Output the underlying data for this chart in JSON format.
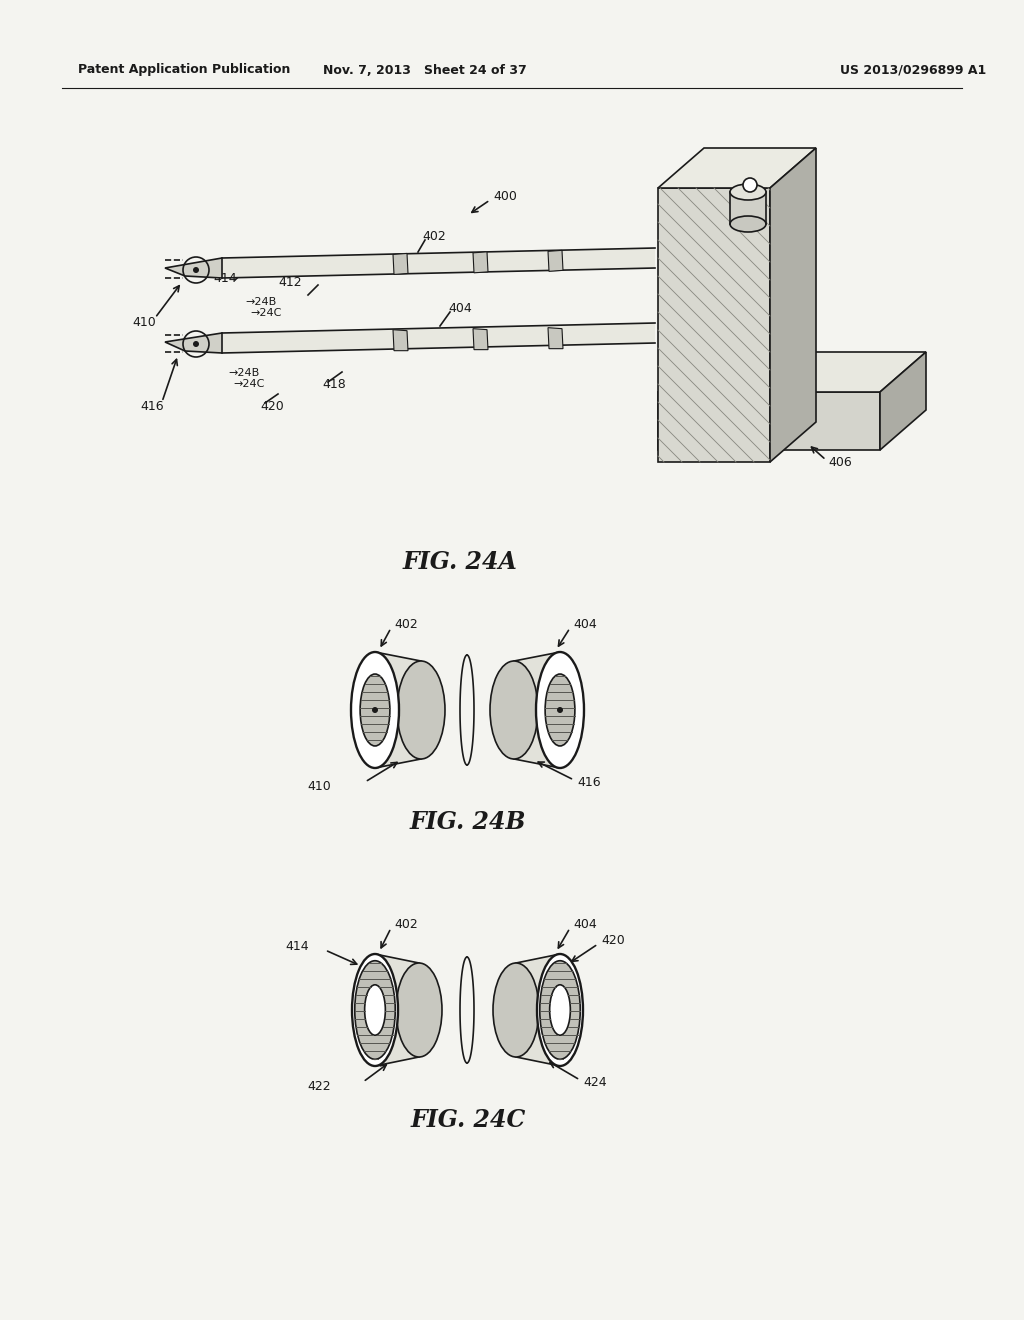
{
  "header_left": "Patent Application Publication",
  "header_mid": "Nov. 7, 2013   Sheet 24 of 37",
  "header_right": "US 2013/0296899 A1",
  "bg_color": "#f4f4f0",
  "fig_24a_label": "FIG. 24A",
  "fig_24b_label": "FIG. 24B",
  "fig_24c_label": "FIG. 24C",
  "line_color": "#1a1a1a"
}
